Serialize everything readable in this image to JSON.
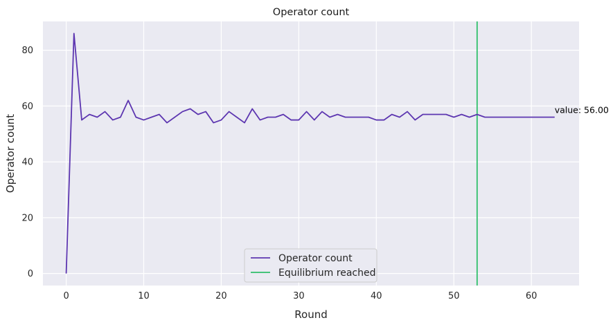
{
  "chart_data": {
    "type": "line",
    "title": "Operator count",
    "xlabel": "Round",
    "ylabel": "Operator count",
    "xlim": [
      -3,
      66.15
    ],
    "ylim": [
      -4.3,
      90.3
    ],
    "xticks": [
      0,
      10,
      20,
      30,
      40,
      50,
      60
    ],
    "yticks": [
      0,
      20,
      40,
      60,
      80
    ],
    "grid": true,
    "legend_position": "bottom-center",
    "series": [
      {
        "name": "Operator count",
        "color": "#5c35b0",
        "x": [
          0,
          1,
          2,
          3,
          4,
          5,
          6,
          7,
          8,
          9,
          10,
          11,
          12,
          13,
          14,
          15,
          16,
          17,
          18,
          19,
          20,
          21,
          22,
          23,
          24,
          25,
          26,
          27,
          28,
          29,
          30,
          31,
          32,
          33,
          34,
          35,
          36,
          37,
          38,
          39,
          40,
          41,
          42,
          43,
          44,
          45,
          46,
          47,
          48,
          49,
          50,
          51,
          52,
          53,
          54,
          55,
          56,
          57,
          58,
          59,
          60,
          61,
          62,
          63
        ],
        "y": [
          0,
          86,
          55,
          57,
          56,
          58,
          55,
          56,
          62,
          56,
          55,
          56,
          57,
          54,
          56,
          58,
          59,
          57,
          58,
          54,
          55,
          58,
          56,
          54,
          59,
          55,
          56,
          56,
          57,
          55,
          55,
          58,
          55,
          58,
          56,
          57,
          56,
          56,
          56,
          56,
          55,
          55,
          57,
          56,
          58,
          55,
          57,
          57,
          57,
          57,
          56,
          57,
          56,
          57,
          56,
          56,
          56,
          56,
          56,
          56,
          56,
          56,
          56,
          56
        ]
      }
    ],
    "vlines": [
      {
        "name": "Equilibrium reached",
        "x": 53,
        "color": "#2fbf6a"
      }
    ],
    "annotations": [
      {
        "text": "value: 56.00",
        "x": 63,
        "y": 56
      }
    ]
  }
}
